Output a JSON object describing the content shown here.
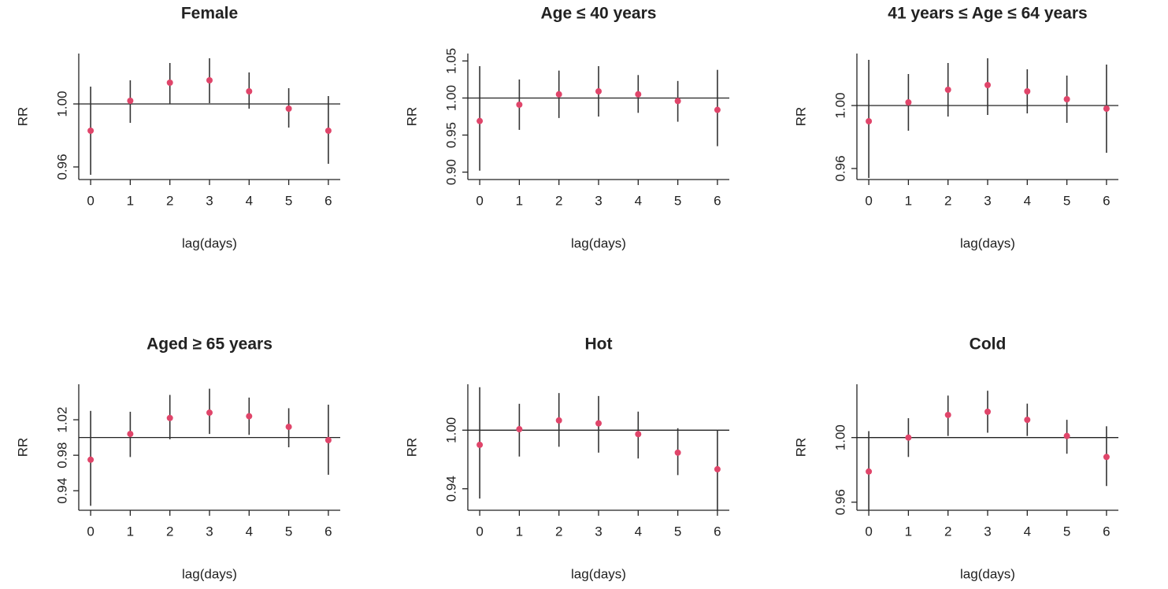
{
  "chart_data": [
    {
      "type": "errorbar",
      "title": "Female",
      "xlabel": "lag(days)",
      "ylabel": "RR",
      "color": "#e0456a",
      "refline": 1,
      "x": [
        0,
        1,
        2,
        3,
        4,
        5,
        6
      ],
      "values": [
        0.983,
        1.002,
        1.0135,
        1.015,
        1.008,
        0.997,
        0.983
      ],
      "lower": [
        0.955,
        0.988,
        1.0,
        1.0005,
        0.997,
        0.985,
        0.962
      ],
      "upper": [
        1.011,
        1.015,
        1.026,
        1.029,
        1.02,
        1.01,
        1.005
      ],
      "xlim": [
        -0.3,
        6.3
      ],
      "xticks": [
        0,
        1,
        2,
        3,
        4,
        5,
        6
      ],
      "ylim": [
        0.952,
        1.032
      ],
      "yticks": [
        0.96,
        {
          "value": 1,
          "label": "1.00"
        }
      ]
    },
    {
      "type": "errorbar",
      "title": "Age ≤ 40 years",
      "xlabel": "lag(days)",
      "ylabel": "RR",
      "color": "#e0456a",
      "refline": 1,
      "x": [
        0,
        1,
        2,
        3,
        4,
        5,
        6
      ],
      "values": [
        0.969,
        0.991,
        1.005,
        1.009,
        1.005,
        0.996,
        0.984
      ],
      "lower": [
        0.902,
        0.957,
        0.973,
        0.975,
        0.98,
        0.968,
        0.935
      ],
      "upper": [
        1.043,
        1.025,
        1.037,
        1.043,
        1.031,
        1.023,
        1.038
      ],
      "xlim": [
        -0.3,
        6.3
      ],
      "xticks": [
        0,
        1,
        2,
        3,
        4,
        5,
        6
      ],
      "ylim": [
        0.89,
        1.06
      ],
      "yticks": [
        {
          "value": 0.9,
          "label": "0.90"
        },
        0.95,
        {
          "value": 1,
          "label": "1.00"
        },
        1.05
      ]
    },
    {
      "type": "errorbar",
      "title": "41 years ≤ Age ≤ 64 years",
      "xlabel": "lag(days)",
      "ylabel": "RR",
      "color": "#e0456a",
      "refline": 1,
      "x": [
        0,
        1,
        2,
        3,
        4,
        5,
        6
      ],
      "values": [
        0.99,
        1.002,
        1.01,
        1.013,
        1.009,
        1.004,
        0.998
      ],
      "lower": [
        0.954,
        0.984,
        0.993,
        0.994,
        0.995,
        0.989,
        0.97
      ],
      "upper": [
        1.029,
        1.02,
        1.027,
        1.03,
        1.023,
        1.019,
        1.026
      ],
      "xlim": [
        -0.3,
        6.3
      ],
      "xticks": [
        0,
        1,
        2,
        3,
        4,
        5,
        6
      ],
      "ylim": [
        0.953,
        1.033
      ],
      "yticks": [
        0.96,
        {
          "value": 1,
          "label": "1.00"
        }
      ]
    },
    {
      "type": "errorbar",
      "title": "Aged ≥ 65 years",
      "xlabel": "lag(days)",
      "ylabel": "RR",
      "color": "#e0456a",
      "refline": 1,
      "x": [
        0,
        1,
        2,
        3,
        4,
        5,
        6
      ],
      "values": [
        0.975,
        1.004,
        1.022,
        1.028,
        1.024,
        1.012,
        0.997
      ],
      "lower": [
        0.923,
        0.978,
        0.998,
        1.004,
        1.003,
        0.989,
        0.958
      ],
      "upper": [
        1.03,
        1.029,
        1.048,
        1.055,
        1.045,
        1.033,
        1.037
      ],
      "xlim": [
        -0.3,
        6.3
      ],
      "xticks": [
        0,
        1,
        2,
        3,
        4,
        5,
        6
      ],
      "ylim": [
        0.918,
        1.06
      ],
      "yticks": [
        0.94,
        0.98,
        1.02
      ]
    },
    {
      "type": "errorbar",
      "title": "Hot",
      "xlabel": "lag(days)",
      "ylabel": "RR",
      "color": "#e0456a",
      "refline": 1,
      "x": [
        0,
        1,
        2,
        3,
        4,
        5,
        6
      ],
      "values": [
        0.985,
        1.001,
        1.01,
        1.007,
        0.996,
        0.977,
        0.96
      ],
      "lower": [
        0.93,
        0.973,
        0.983,
        0.977,
        0.971,
        0.954,
        0.918
      ],
      "upper": [
        1.044,
        1.027,
        1.038,
        1.035,
        1.019,
        1.002,
        1.0
      ],
      "xlim": [
        -0.3,
        6.3
      ],
      "xticks": [
        0,
        1,
        2,
        3,
        4,
        5,
        6
      ],
      "ylim": [
        0.918,
        1.047
      ],
      "yticks": [
        0.94,
        {
          "value": 1,
          "label": "1.00"
        }
      ]
    },
    {
      "type": "errorbar",
      "title": "Cold",
      "xlabel": "lag(days)",
      "ylabel": "RR",
      "color": "#e0456a",
      "refline": 1,
      "x": [
        0,
        1,
        2,
        3,
        4,
        5,
        6
      ],
      "values": [
        0.979,
        1.0,
        1.014,
        1.016,
        1.011,
        1.001,
        0.988
      ],
      "lower": [
        0.955,
        0.988,
        1.001,
        1.003,
        1.001,
        0.99,
        0.97
      ],
      "upper": [
        1.004,
        1.012,
        1.026,
        1.029,
        1.021,
        1.011,
        1.007
      ],
      "xlim": [
        -0.3,
        6.3
      ],
      "xticks": [
        0,
        1,
        2,
        3,
        4,
        5,
        6
      ],
      "ylim": [
        0.955,
        1.033
      ],
      "yticks": [
        0.96,
        {
          "value": 1,
          "label": "1.00"
        }
      ]
    }
  ]
}
